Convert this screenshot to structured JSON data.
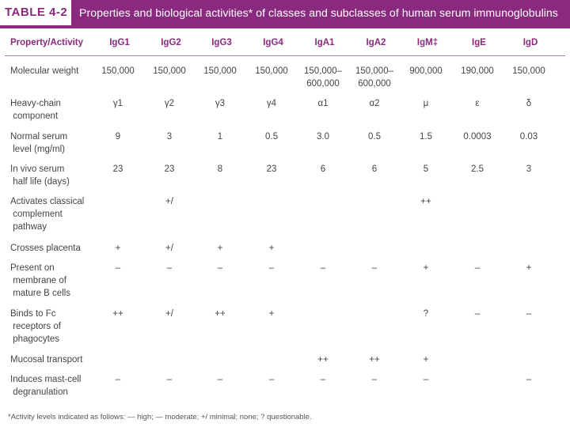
{
  "header": {
    "table_label": "TABLE 4-2",
    "title": "Properties and biological activities* of classes and subclasses of human serum immunoglobulins"
  },
  "table": {
    "columns": [
      "Property/Activity",
      "IgG1",
      "IgG2",
      "IgG3",
      "IgG4",
      "IgA1",
      "IgA2",
      "IgM‡",
      "IgE",
      "IgD"
    ],
    "rows": [
      {
        "label": "Molecular weight",
        "cells": [
          "150,000",
          "150,000",
          "150,000",
          "150,000",
          "150,000–\n600,000",
          "150,000–\n600,000",
          "900,000",
          "190,000",
          "150,000"
        ]
      },
      {
        "label": "Heavy-chain\n component",
        "cells": [
          "γ1",
          "γ2",
          "γ3",
          "γ4",
          "α1",
          "α2",
          "μ",
          "ε",
          "δ"
        ]
      },
      {
        "label": "Normal serum\n level (mg/ml)",
        "cells": [
          "9",
          "3",
          "1",
          "0.5",
          "3.0",
          "0.5",
          "1.5",
          "0.0003",
          "0.03"
        ]
      },
      {
        "label": "In vivo serum\n half life (days)",
        "cells": [
          "23",
          "23",
          "8",
          "23",
          "6",
          "6",
          "5",
          "2.5",
          "3"
        ]
      },
      {
        "label": "Activates classical\n complement\n pathway",
        "cells": [
          "",
          "+/",
          "",
          "",
          "",
          "",
          "++",
          "",
          ""
        ]
      },
      {
        "label": "Crosses placenta",
        "cells": [
          "+",
          "+/",
          "+",
          "+",
          "",
          "",
          "",
          "",
          ""
        ]
      },
      {
        "label": "Present on\n membrane of\n mature B cells",
        "cells": [
          "–",
          "–",
          "–",
          "–",
          "–",
          "–",
          "+",
          "–",
          "+"
        ]
      },
      {
        "label": "Binds to Fc\n receptors of\n phagocytes",
        "cells": [
          "++",
          "+/",
          "++",
          "+",
          "",
          "",
          "?",
          "–",
          "–"
        ]
      },
      {
        "label": "Mucosal transport",
        "cells": [
          "",
          "",
          "",
          "",
          "++",
          "++",
          "+",
          "",
          ""
        ]
      },
      {
        "label": "Induces mast-cell\n degranulation",
        "cells": [
          "–",
          "–",
          "–",
          "–",
          "–",
          "–",
          "–",
          "",
          "–"
        ]
      }
    ]
  },
  "footnote": "*Activity levels indicated as follows: — high; — moderate; +/ minimal; none; ? questionable."
}
